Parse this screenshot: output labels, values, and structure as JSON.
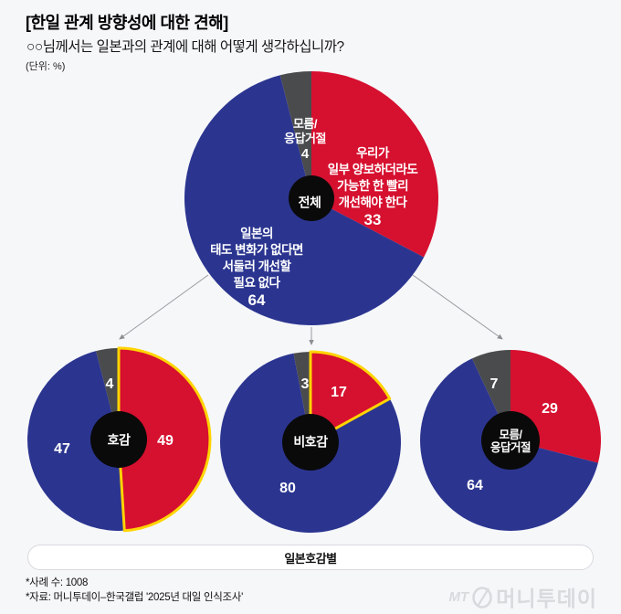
{
  "header": {
    "title": "[한일 관계 방향성에 대한 견해]",
    "subtitle": "○○님께서는 일본과의 관계에 대해 어떻게 생각하십니까?",
    "unit_label": "(단위: %)"
  },
  "chart_data": {
    "type": "pie",
    "unit": "%",
    "colors": {
      "red": "#d6102f",
      "blue": "#2b3590",
      "gray": "#4a4b4d",
      "outline": "#ffd400",
      "center": "#0a0a0a"
    },
    "pies": [
      {
        "name": "전체",
        "center_label": "전체",
        "slices": [
          {
            "label": "우리가\n일부 양보하더라도\n가능한 한 빨리\n개선해야 한다",
            "value": 33,
            "color": "red"
          },
          {
            "label": "일본의\n태도 변화가 없다면\n서둘러 개선할\n필요 없다",
            "value": 64,
            "color": "blue"
          },
          {
            "label": "모름/\n응답거절",
            "value": 4,
            "color": "gray"
          }
        ]
      },
      {
        "name": "호감",
        "center_label": "호감",
        "slices": [
          {
            "value": 49,
            "color": "red",
            "outlined": true
          },
          {
            "value": 47,
            "color": "blue"
          },
          {
            "value": 4,
            "color": "gray"
          }
        ]
      },
      {
        "name": "비호감",
        "center_label": "비호감",
        "slices": [
          {
            "value": 17,
            "color": "red",
            "outlined": true
          },
          {
            "value": 80,
            "color": "blue"
          },
          {
            "value": 3,
            "color": "gray"
          }
        ]
      },
      {
        "name": "모름/응답거절",
        "center_label": "모름/\n응답거절",
        "slices": [
          {
            "value": 29,
            "color": "red"
          },
          {
            "value": 64,
            "color": "blue"
          },
          {
            "value": 7,
            "color": "gray"
          }
        ]
      }
    ],
    "group_axis_label": "일본호감별"
  },
  "footnotes": {
    "sample": "*사례 수: 1008",
    "source": "*자료: 머니투데이–한국갤럽 '2025년 대일 인식조사'"
  },
  "logo": {
    "mt": "MT",
    "name": "머니투데이"
  }
}
